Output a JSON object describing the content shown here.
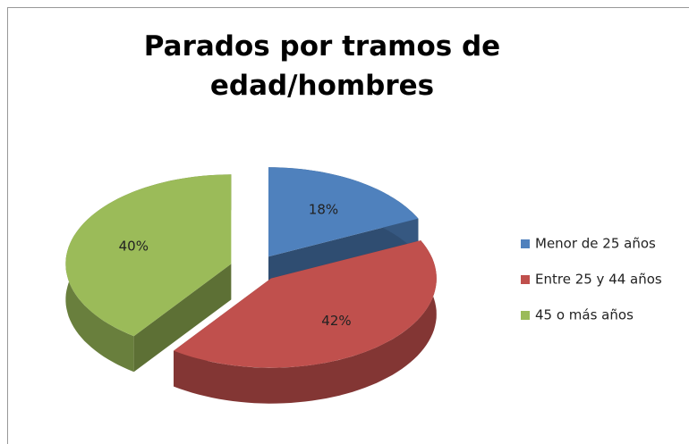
{
  "chart_data": {
    "type": "pie",
    "title": "Parados por tramos de edad/hombres",
    "categories": [
      "Menor de 25 años",
      "Entre 25 y 44 años",
      "45 o más años"
    ],
    "values": [
      18,
      42,
      40
    ],
    "value_labels": [
      "18%",
      "42%",
      "40%"
    ],
    "colors": [
      "#4f81bd",
      "#c0504d",
      "#9bbb59"
    ],
    "legend": "right"
  }
}
